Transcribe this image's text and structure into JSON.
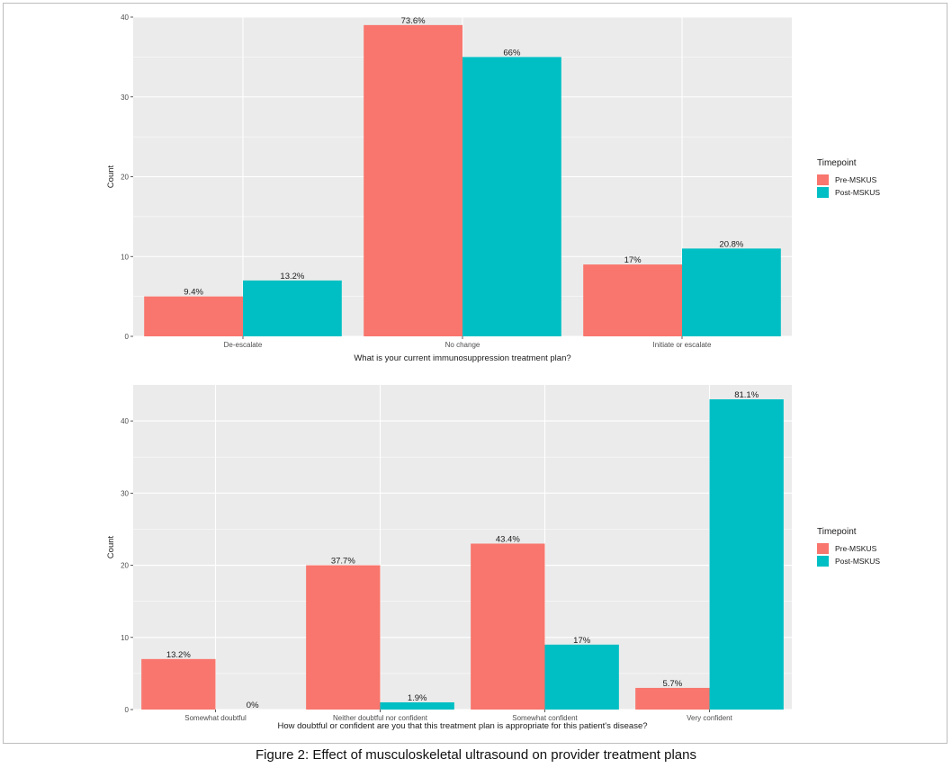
{
  "caption": "Figure 2: Effect of musculoskeletal ultrasound on provider treatment plans",
  "colors": {
    "pre": "#F8766D",
    "post": "#00BFC4",
    "panel": "#EBEBEB",
    "grid": "#FFFFFF"
  },
  "chart_data": [
    {
      "type": "bar",
      "title": "",
      "xlabel": "What is your current immunosuppression treatment plan?",
      "ylabel": "Count",
      "ylim": [
        0,
        40
      ],
      "yticks": [
        0,
        10,
        20,
        30,
        40
      ],
      "categories": [
        "De-escalate",
        "No change",
        "Initiate or escalate"
      ],
      "legend_title": "Timepoint",
      "legend_position": "right",
      "grid": true,
      "series": [
        {
          "name": "Pre-MSKUS",
          "values": [
            5,
            39,
            9
          ],
          "labels": [
            "9.4%",
            "73.6%",
            "17%"
          ]
        },
        {
          "name": "Post-MSKUS",
          "values": [
            7,
            35,
            11
          ],
          "labels": [
            "13.2%",
            "66%",
            "20.8%"
          ]
        }
      ]
    },
    {
      "type": "bar",
      "title": "",
      "xlabel": "How doubtful or confident are you that this treatment plan is appropriate for this patient's disease?",
      "ylabel": "Count",
      "ylim": [
        0,
        45
      ],
      "yticks": [
        0,
        10,
        20,
        30,
        40
      ],
      "categories": [
        "Somewhat doubtful",
        "Neither doubtful nor confident",
        "Somewhat confident",
        "Very confident"
      ],
      "legend_title": "Timepoint",
      "legend_position": "right",
      "grid": true,
      "series": [
        {
          "name": "Pre-MSKUS",
          "values": [
            7,
            20,
            23,
            3
          ],
          "labels": [
            "13.2%",
            "37.7%",
            "43.4%",
            "5.7%"
          ]
        },
        {
          "name": "Post-MSKUS",
          "values": [
            0,
            1,
            9,
            43
          ],
          "labels": [
            "0%",
            "1.9%",
            "17%",
            "81.1%"
          ]
        }
      ]
    }
  ]
}
